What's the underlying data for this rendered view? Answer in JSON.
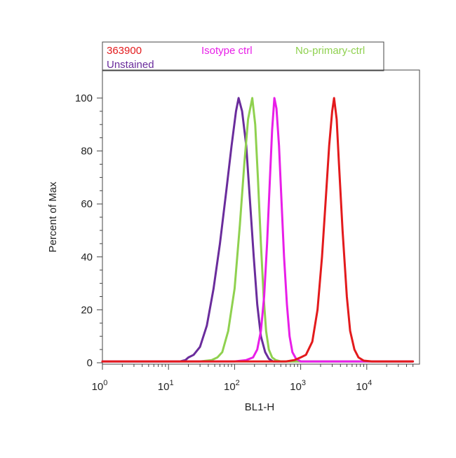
{
  "chart_data": {
    "type": "line",
    "title": "",
    "xlabel": "BL1-H",
    "ylabel": "Percent of Max",
    "x_scale": "log",
    "xlim": [
      1,
      50000
    ],
    "ylim": [
      0,
      105
    ],
    "x_ticks": [
      {
        "base": "10",
        "exp": "0"
      },
      {
        "base": "10",
        "exp": "1"
      },
      {
        "base": "10",
        "exp": "2"
      },
      {
        "base": "10",
        "exp": "3"
      },
      {
        "base": "10",
        "exp": "4"
      }
    ],
    "y_ticks": [
      "0",
      "20",
      "40",
      "60",
      "80",
      "100"
    ],
    "legend_position": "top",
    "grid": false,
    "series": [
      {
        "name": "363900",
        "color": "#e31a1c",
        "points": [
          [
            1,
            0.5
          ],
          [
            100,
            0.5
          ],
          [
            600,
            0.5
          ],
          [
            800,
            1
          ],
          [
            1000,
            2
          ],
          [
            1200,
            3
          ],
          [
            1500,
            8
          ],
          [
            1800,
            20
          ],
          [
            2100,
            40
          ],
          [
            2400,
            62
          ],
          [
            2700,
            82
          ],
          [
            3000,
            95
          ],
          [
            3200,
            100
          ],
          [
            3500,
            92
          ],
          [
            3800,
            75
          ],
          [
            4300,
            50
          ],
          [
            5000,
            25
          ],
          [
            5600,
            12
          ],
          [
            6500,
            5
          ],
          [
            7500,
            2
          ],
          [
            9000,
            0.8
          ],
          [
            12000,
            0.5
          ],
          [
            50000,
            0.5
          ]
        ]
      },
      {
        "name": "Isotype ctrl",
        "color": "#e81ee8",
        "points": [
          [
            1,
            0.5
          ],
          [
            100,
            0.5
          ],
          [
            150,
            1
          ],
          [
            190,
            2
          ],
          [
            220,
            5
          ],
          [
            250,
            12
          ],
          [
            280,
            25
          ],
          [
            310,
            45
          ],
          [
            340,
            68
          ],
          [
            370,
            88
          ],
          [
            400,
            100
          ],
          [
            430,
            96
          ],
          [
            470,
            82
          ],
          [
            510,
            62
          ],
          [
            560,
            40
          ],
          [
            620,
            22
          ],
          [
            680,
            10
          ],
          [
            750,
            4
          ],
          [
            850,
            1.5
          ],
          [
            1000,
            0.5
          ],
          [
            50000,
            0.5
          ]
        ]
      },
      {
        "name": "No-primary-ctrl",
        "color": "#8fd14f",
        "points": [
          [
            1,
            0.5
          ],
          [
            30,
            0.5
          ],
          [
            45,
            1
          ],
          [
            55,
            2
          ],
          [
            65,
            4
          ],
          [
            80,
            12
          ],
          [
            100,
            28
          ],
          [
            120,
            52
          ],
          [
            140,
            75
          ],
          [
            160,
            92
          ],
          [
            185,
            100
          ],
          [
            205,
            90
          ],
          [
            225,
            70
          ],
          [
            250,
            45
          ],
          [
            275,
            25
          ],
          [
            300,
            12
          ],
          [
            330,
            5
          ],
          [
            370,
            2
          ],
          [
            420,
            1
          ],
          [
            500,
            0.5
          ],
          [
            50000,
            0.5
          ]
        ]
      },
      {
        "name": "Unstained",
        "color": "#6a2c9c",
        "points": [
          [
            1,
            0.5
          ],
          [
            15,
            0.5
          ],
          [
            18,
            1
          ],
          [
            20,
            2
          ],
          [
            24,
            3
          ],
          [
            30,
            6
          ],
          [
            38,
            14
          ],
          [
            48,
            28
          ],
          [
            60,
            45
          ],
          [
            75,
            65
          ],
          [
            90,
            82
          ],
          [
            105,
            95
          ],
          [
            115,
            100
          ],
          [
            130,
            95
          ],
          [
            150,
            82
          ],
          [
            170,
            62
          ],
          [
            195,
            40
          ],
          [
            220,
            22
          ],
          [
            250,
            10
          ],
          [
            290,
            4
          ],
          [
            330,
            1.5
          ],
          [
            380,
            0.5
          ],
          [
            50000,
            0.5
          ]
        ]
      }
    ]
  }
}
